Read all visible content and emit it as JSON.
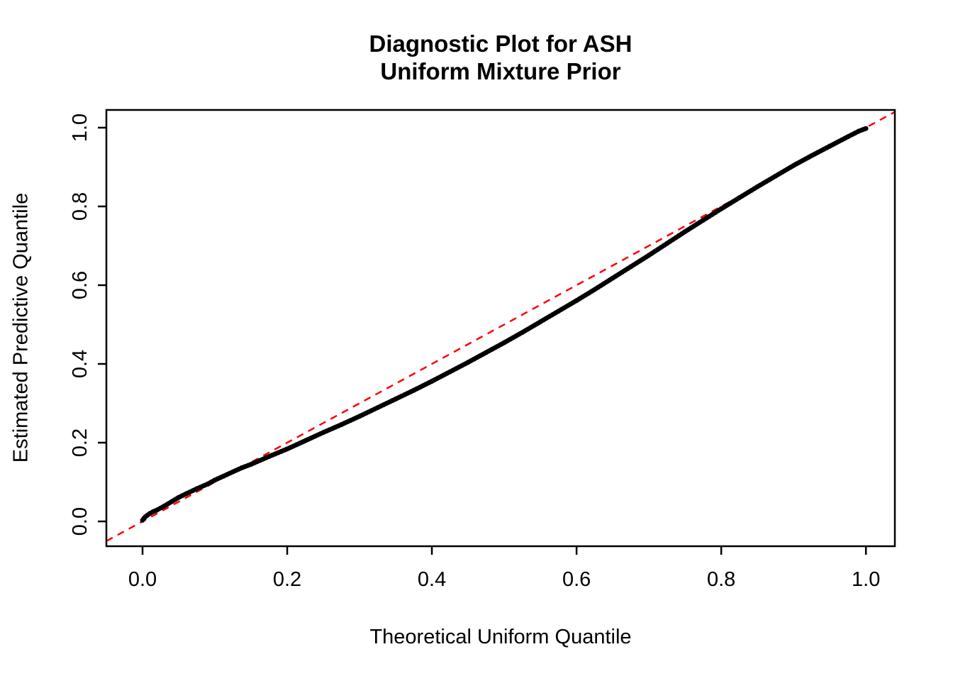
{
  "chart_data": {
    "type": "scatter",
    "title_lines": [
      "Diagnostic Plot for ASH",
      "Uniform Mixture Prior"
    ],
    "xlabel": "Theoretical Uniform Quantile",
    "ylabel": "Estimated Predictive Quantile",
    "axis_range": {
      "x": [
        -0.05,
        1.04
      ],
      "y": [
        -0.063,
        1.045
      ]
    },
    "x_ticks": [
      0.0,
      0.2,
      0.4,
      0.6,
      0.8,
      1.0
    ],
    "x_tick_labels": [
      "0.0",
      "0.2",
      "0.4",
      "0.6",
      "0.8",
      "1.0"
    ],
    "y_ticks": [
      0.0,
      0.2,
      0.4,
      0.6,
      0.8,
      1.0
    ],
    "y_tick_labels": [
      "0.0",
      "0.2",
      "0.4",
      "0.6",
      "0.8",
      "1.0"
    ],
    "grid": false,
    "legend": "none",
    "point_color": "#000000",
    "reference_line": {
      "type": "identity",
      "intercept": 0,
      "slope": 1,
      "color": "#FF0000",
      "style": "dashed"
    },
    "points": [
      [
        0.0,
        0.003
      ],
      [
        0.002,
        0.008
      ],
      [
        0.004,
        0.012
      ],
      [
        0.007,
        0.016
      ],
      [
        0.01,
        0.02
      ],
      [
        0.015,
        0.025
      ],
      [
        0.02,
        0.029
      ],
      [
        0.03,
        0.039
      ],
      [
        0.04,
        0.05
      ],
      [
        0.05,
        0.061
      ],
      [
        0.06,
        0.07
      ],
      [
        0.075,
        0.083
      ],
      [
        0.09,
        0.095
      ],
      [
        0.1,
        0.105
      ],
      [
        0.112,
        0.115
      ],
      [
        0.125,
        0.126
      ],
      [
        0.137,
        0.136
      ],
      [
        0.15,
        0.145
      ],
      [
        0.175,
        0.165
      ],
      [
        0.2,
        0.184
      ],
      [
        0.225,
        0.205
      ],
      [
        0.25,
        0.226
      ],
      [
        0.275,
        0.246
      ],
      [
        0.3,
        0.267
      ],
      [
        0.325,
        0.289
      ],
      [
        0.35,
        0.311
      ],
      [
        0.375,
        0.333
      ],
      [
        0.4,
        0.356
      ],
      [
        0.425,
        0.38
      ],
      [
        0.45,
        0.404
      ],
      [
        0.475,
        0.429
      ],
      [
        0.5,
        0.454
      ],
      [
        0.525,
        0.48
      ],
      [
        0.55,
        0.507
      ],
      [
        0.575,
        0.534
      ],
      [
        0.6,
        0.561
      ],
      [
        0.625,
        0.589
      ],
      [
        0.65,
        0.618
      ],
      [
        0.675,
        0.647
      ],
      [
        0.7,
        0.676
      ],
      [
        0.725,
        0.706
      ],
      [
        0.75,
        0.736
      ],
      [
        0.775,
        0.765
      ],
      [
        0.8,
        0.794
      ],
      [
        0.825,
        0.822
      ],
      [
        0.85,
        0.85
      ],
      [
        0.875,
        0.877
      ],
      [
        0.9,
        0.904
      ],
      [
        0.925,
        0.929
      ],
      [
        0.95,
        0.953
      ],
      [
        0.975,
        0.977
      ],
      [
        0.99,
        0.991
      ],
      [
        1.0,
        0.998
      ]
    ]
  }
}
